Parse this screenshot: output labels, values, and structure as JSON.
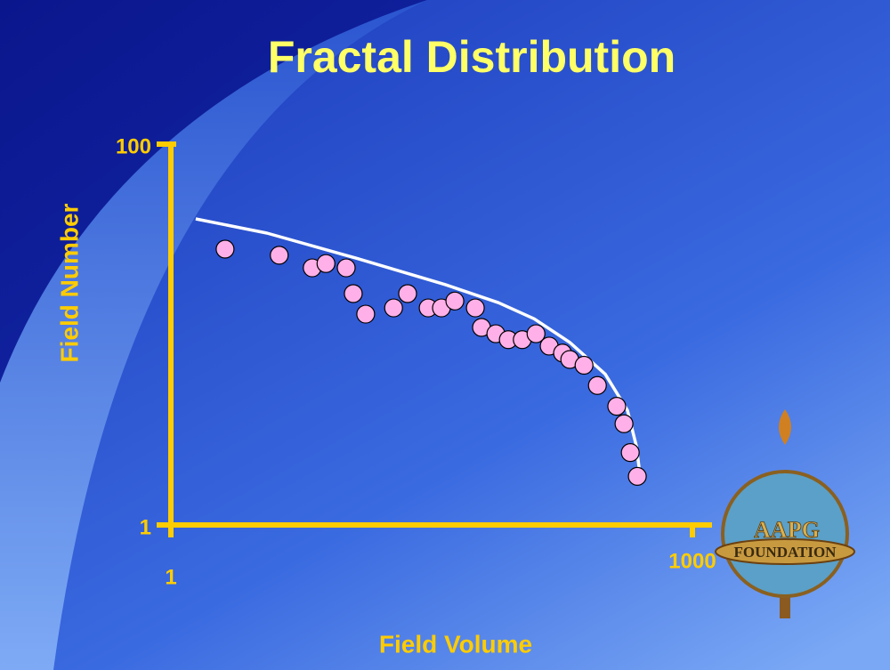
{
  "chart_data": {
    "type": "scatter",
    "title": "Fractal Distribution",
    "x_label": "Field Volume",
    "y_label": "Field Number",
    "xscale": "log",
    "yscale": "log",
    "xlim": [
      1,
      1000
    ],
    "ylim": [
      1,
      100
    ],
    "xticks": [
      1,
      1000
    ],
    "yticks": [
      1,
      100
    ],
    "axis_color": "#ffcc00",
    "series": [
      {
        "type": "scatter",
        "color": "#ffb0e8",
        "x": [
          2.05,
          4.2,
          6.5,
          7.8,
          10.2,
          11.2,
          13.2,
          19.1,
          23,
          30.2,
          36,
          43,
          56.4,
          61.2,
          74,
          87.3,
          105,
          126,
          150,
          179,
          197,
          238,
          284,
          367,
          404,
          439,
          482
        ],
        "values": [
          28.1,
          26.1,
          22.4,
          23.6,
          22.4,
          16.4,
          12.8,
          13.8,
          16.4,
          13.8,
          13.8,
          15,
          13.8,
          10.9,
          10.1,
          9.4,
          9.4,
          10.1,
          8.7,
          8,
          7.4,
          6.9,
          5.4,
          4.2,
          3.4,
          2.4,
          1.8
        ]
      },
      {
        "type": "line",
        "color": "#ffffff",
        "x": [
          1.39,
          3.57,
          11.6,
          37.8,
          76.6,
          123,
          197,
          315,
          423,
          476,
          505
        ],
        "values": [
          40.5,
          34.1,
          25.2,
          18.3,
          14.7,
          12.1,
          9.1,
          6.2,
          4,
          2.6,
          1.7
        ]
      }
    ]
  },
  "logo": {
    "top": "AAPG",
    "bottom": "FOUNDATION"
  }
}
